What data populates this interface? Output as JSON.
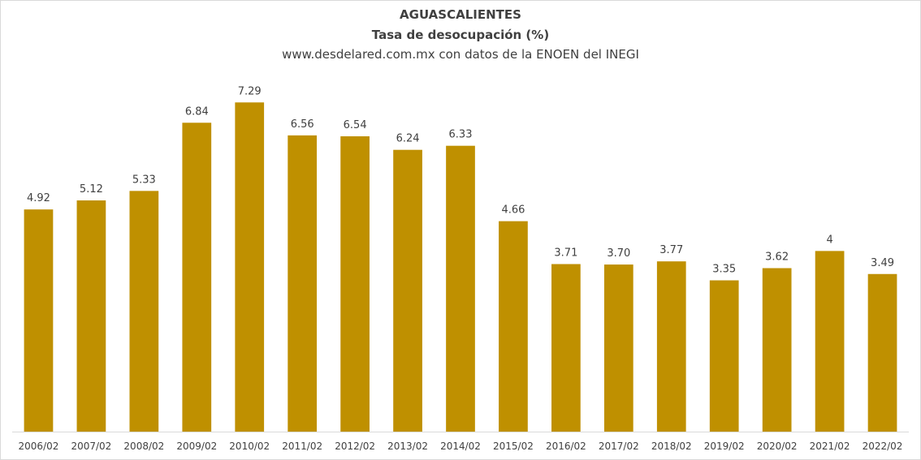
{
  "chart_data": {
    "type": "bar",
    "title": "AGUASCALIENTES",
    "subtitle": "Tasa de desocupación (%)",
    "source": "www.desdelared.com.mx con datos de la ENOEN del INEGI",
    "categories": [
      "2006/02",
      "2007/02",
      "2008/02",
      "2009/02",
      "2010/02",
      "2011/02",
      "2012/02",
      "2013/02",
      "2014/02",
      "2015/02",
      "2016/02",
      "2017/02",
      "2018/02",
      "2019/02",
      "2020/02",
      "2021/02",
      "2022/02"
    ],
    "values": [
      4.92,
      5.12,
      5.33,
      6.84,
      7.29,
      6.56,
      6.54,
      6.24,
      6.33,
      4.66,
      3.71,
      3.7,
      3.77,
      3.35,
      3.62,
      4,
      3.49
    ],
    "value_labels": [
      "4.92",
      "5.12",
      "5.33",
      "6.84",
      "7.29",
      "6.56",
      "6.54",
      "6.24",
      "6.33",
      "4.66",
      "3.71",
      "3.70",
      "3.77",
      "3.35",
      "3.62",
      "4",
      "3.49"
    ],
    "ylim": [
      0,
      7.6
    ],
    "grid": false,
    "legend": "none",
    "bar_color": "#BF9000",
    "axis_color": "#d9d9d9",
    "xlabel": "",
    "ylabel": ""
  }
}
